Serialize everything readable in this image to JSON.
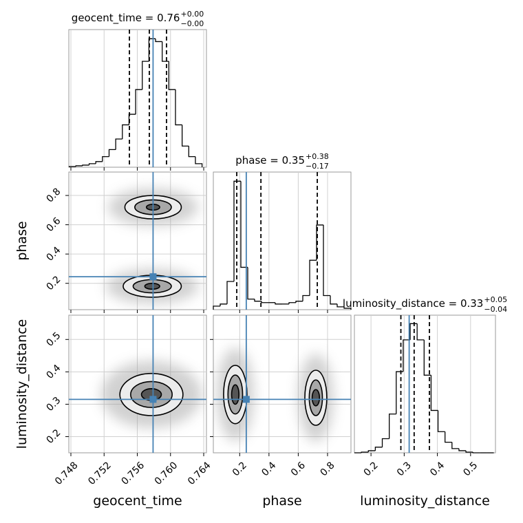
{
  "chart_data": [
    {
      "type": "hist",
      "title": {
        "text": "geocent_time = 0.76",
        "upper": "+0.00",
        "lower": "−0.00"
      },
      "xlim": [
        0.74775,
        0.76433
      ],
      "xticks": [
        0.748,
        0.752,
        0.756,
        {
          "value": 0.76,
          "label": "0.760"
        },
        0.764
      ],
      "ylim": [
        0,
        195
      ],
      "bins": [
        0.7478,
        0.7486,
        0.7494,
        0.7502,
        0.751,
        0.7518,
        0.7526,
        0.7534,
        0.7542,
        0.755,
        0.7558,
        0.7566,
        0.7574,
        0.7582,
        0.759,
        0.7598,
        0.7606,
        0.7614,
        0.7622,
        0.763,
        0.7638
      ],
      "counts": [
        1,
        2,
        3,
        5,
        8,
        15,
        25,
        40,
        60,
        75,
        110,
        150,
        182,
        178,
        150,
        110,
        60,
        30,
        15,
        5
      ],
      "quantiles": [
        0.75505,
        0.75745,
        0.75952
      ],
      "truth": 0.7579,
      "color": "#000000",
      "truth_color": "#4682b4",
      "grid": true
    },
    {
      "type": "hist2d",
      "xlim": [
        0.74775,
        0.76433
      ],
      "xticks": [
        0.748,
        0.752,
        0.756,
        {
          "value": 0.76,
          "label": "0.760"
        },
        0.764
      ],
      "ylim": [
        0.02,
        0.96
      ],
      "yticks": [
        0.2,
        0.4,
        0.6,
        0.8
      ],
      "ylabel": "phase",
      "truth_x": 0.7579,
      "truth_y": 0.245,
      "truth_color": "#4682b4",
      "grid": true,
      "modes": [
        {
          "x": 0.7579,
          "y": 0.72,
          "rx": [
            0.0008,
            0.0022,
            0.0034
          ],
          "ry": [
            0.02,
            0.05,
            0.08
          ]
        },
        {
          "x": 0.7578,
          "y": 0.18,
          "rx": [
            0.0009,
            0.0023,
            0.0035
          ],
          "ry": [
            0.02,
            0.045,
            0.075
          ]
        }
      ]
    },
    {
      "type": "hist",
      "title": {
        "text": "phase = 0.35",
        "upper": "+0.38",
        "lower": "−0.17"
      },
      "xlim": [
        0.02,
        0.96
      ],
      "xticks": [
        0.2,
        0.4,
        0.6,
        0.8
      ],
      "ylim": [
        0,
        195
      ],
      "bins": [
        0.02,
        0.067,
        0.114,
        0.161,
        0.208,
        0.255,
        0.302,
        0.349,
        0.396,
        0.443,
        0.49,
        0.537,
        0.584,
        0.631,
        0.678,
        0.725,
        0.772,
        0.819,
        0.866,
        0.913,
        0.96
      ],
      "counts": [
        5,
        8,
        40,
        182,
        60,
        15,
        12,
        10,
        10,
        8,
        8,
        10,
        12,
        20,
        70,
        120,
        20,
        8,
        4,
        2
      ],
      "quantiles": [
        0.18,
        0.345,
        0.73
      ],
      "truth": 0.245,
      "color": "#000000",
      "truth_color": "#4682b4",
      "grid": true
    },
    {
      "type": "hist2d",
      "xlim": [
        0.74775,
        0.76433
      ],
      "xticks": [
        0.748,
        0.752,
        0.756,
        {
          "value": 0.76,
          "label": "0.760"
        },
        0.764
      ],
      "ylim": [
        0.15,
        0.575
      ],
      "yticks": [
        0.2,
        0.3,
        0.4,
        0.5
      ],
      "xlabel": "geocent_time",
      "ylabel": "luminosity_distance",
      "truth_x": 0.7579,
      "truth_y": 0.315,
      "truth_color": "#4682b4",
      "grid": true,
      "modes": [
        {
          "x": 0.7577,
          "y": 0.33,
          "rx": [
            0.0012,
            0.0025,
            0.0038
          ],
          "ry": [
            0.018,
            0.04,
            0.065
          ]
        }
      ]
    },
    {
      "type": "hist2d",
      "xlim": [
        0.02,
        0.96
      ],
      "xticks": [
        0.2,
        0.4,
        0.6,
        0.8
      ],
      "ylim": [
        0.15,
        0.575
      ],
      "yticks": [
        0.2,
        0.3,
        0.4,
        0.5
      ],
      "xlabel": "phase",
      "truth_x": 0.245,
      "truth_y": 0.315,
      "truth_color": "#4682b4",
      "grid": true,
      "modes": [
        {
          "x": 0.17,
          "y": 0.33,
          "rx": [
            0.025,
            0.05,
            0.08
          ],
          "ry": [
            0.03,
            0.06,
            0.09
          ]
        },
        {
          "x": 0.72,
          "y": 0.32,
          "rx": [
            0.025,
            0.045,
            0.075
          ],
          "ry": [
            0.025,
            0.055,
            0.085
          ]
        }
      ]
    },
    {
      "type": "hist",
      "title": {
        "text": "luminosity_distance = 0.33",
        "upper": "+0.05",
        "lower": "−0.04"
      },
      "xlim": [
        0.15,
        0.575
      ],
      "xticks": [
        0.2,
        0.3,
        0.4,
        0.5
      ],
      "ylim": [
        0,
        195
      ],
      "xlabel": "luminosity_distance",
      "bins": [
        0.15,
        0.171,
        0.192,
        0.213,
        0.234,
        0.255,
        0.276,
        0.297,
        0.318,
        0.339,
        0.36,
        0.381,
        0.402,
        0.423,
        0.444,
        0.465,
        0.486,
        0.507,
        0.528,
        0.549,
        0.57
      ],
      "counts": [
        0,
        1,
        3,
        8,
        20,
        55,
        115,
        160,
        183,
        160,
        110,
        60,
        30,
        15,
        6,
        3,
        1,
        0,
        0,
        0
      ],
      "quantiles": [
        0.29,
        0.33,
        0.376
      ],
      "truth": 0.315,
      "color": "#000000",
      "truth_color": "#4682b4",
      "grid": true
    }
  ]
}
